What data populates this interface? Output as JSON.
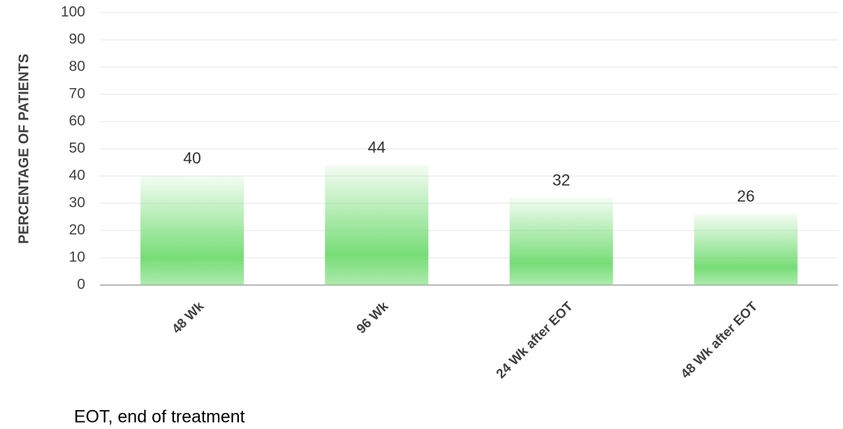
{
  "chart_data": {
    "type": "bar",
    "y_label": "PERCENTAGE OF PATIENTS",
    "categories": [
      "48 Wk",
      "96 Wk",
      "24 Wk after EOT",
      "48 Wk after EOT"
    ],
    "values": [
      40,
      44,
      32,
      26
    ],
    "color": "#77dd77",
    "ylim": [
      0,
      100
    ],
    "yticks": [
      0,
      10,
      20,
      30,
      40,
      50,
      60,
      70,
      80,
      90,
      100
    ],
    "grid": true,
    "footnote": "EOT, end of treatment"
  }
}
